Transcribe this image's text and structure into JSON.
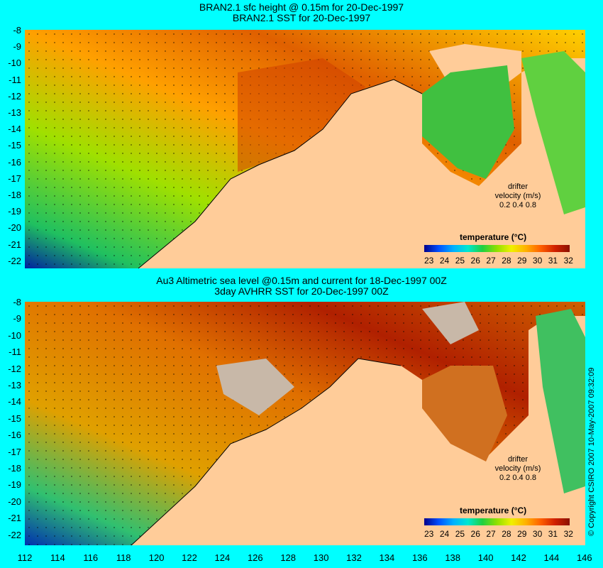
{
  "top_panel": {
    "title_line1": "BRAN2.1 sfc height @ 0.15m for 20-Dec-1997",
    "title_line2": "BRAN2.1 SST for 20-Dec-1997",
    "colorbar_title": "temperature (°C)",
    "drifter_label_1": "drifter",
    "drifter_label_2": "velocity (m/s)",
    "drifter_scale": "0.2  0.4  0.8"
  },
  "bottom_panel": {
    "title_line1": "Au3 Altimetric sea level  @0.15m and current for 18-Dec-1997 00Z",
    "title_line2": "3day AVHRR SST for 20-Dec-1997 00Z",
    "colorbar_title": "temperature (°C)",
    "drifter_label_1": "drifter",
    "drifter_label_2": "velocity (m/s)",
    "drifter_scale": "0.2  0.4  0.8"
  },
  "y_ticks": [
    "-8",
    "-9",
    "-10",
    "-11",
    "-12",
    "-13",
    "-14",
    "-15",
    "-16",
    "-17",
    "-18",
    "-19",
    "-20",
    "-21",
    "-22"
  ],
  "x_ticks": [
    "112",
    "114",
    "116",
    "118",
    "120",
    "122",
    "124",
    "126",
    "128",
    "130",
    "132",
    "134",
    "136",
    "138",
    "140",
    "142",
    "144",
    "146"
  ],
  "colorbar_ticks": [
    "23",
    "24",
    "25",
    "26",
    "27",
    "28",
    "29",
    "30",
    "31",
    "32"
  ],
  "copyright": "© Copyright CSIRO 2007  10-May-2007 09:32:09",
  "colors": {
    "background": "#00ffff",
    "land": "#ffcc99",
    "no_data": "#c8b8a8"
  }
}
